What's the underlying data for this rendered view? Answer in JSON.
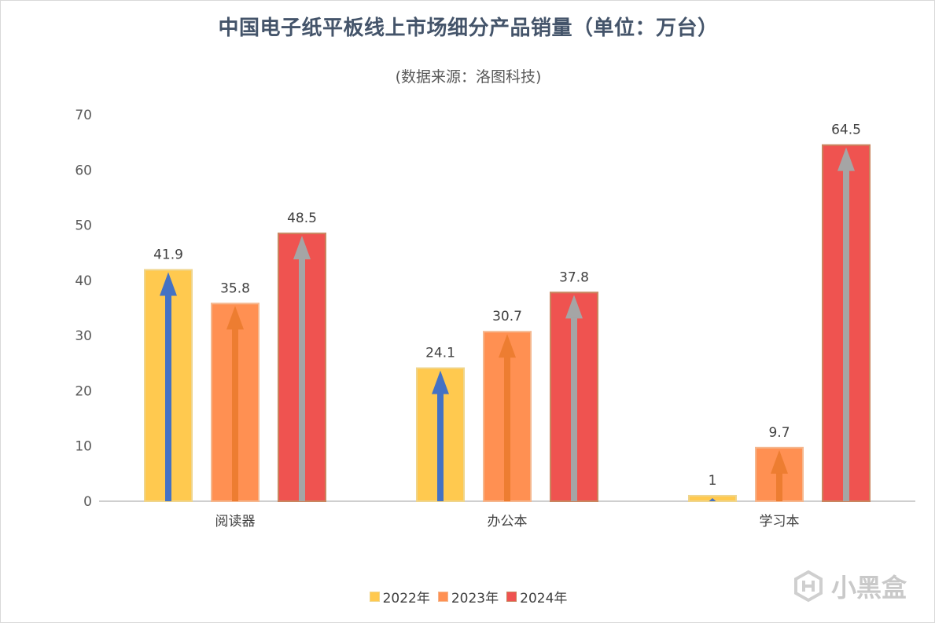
{
  "chart_data": {
    "type": "bar",
    "title": "中国电子纸平板线上市场细分产品销量（单位：万台）",
    "subtitle": "(数据来源：洛图科技)",
    "categories": [
      "阅读器",
      "办公本",
      "学习本"
    ],
    "series": [
      {
        "name": "2022年",
        "values": [
          41.9,
          24.1,
          1
        ],
        "color": "#ffc94f",
        "border": "#efd58c",
        "arrow_color": "#4472c4"
      },
      {
        "name": "2023年",
        "values": [
          35.8,
          30.7,
          9.7
        ],
        "color": "#ff9052",
        "border": "#f5b78e",
        "arrow_color": "#ed7d31"
      },
      {
        "name": "2024年",
        "values": [
          48.5,
          37.8,
          64.5
        ],
        "color": "#ef5350",
        "border": "#c9855f",
        "arrow_color": "#a5a5a5"
      }
    ],
    "ylim": [
      0,
      70
    ],
    "yticks": [
      0,
      10,
      20,
      30,
      40,
      50,
      60,
      70
    ],
    "grid": false,
    "legend": "bottom"
  },
  "watermark": "小黑盒"
}
